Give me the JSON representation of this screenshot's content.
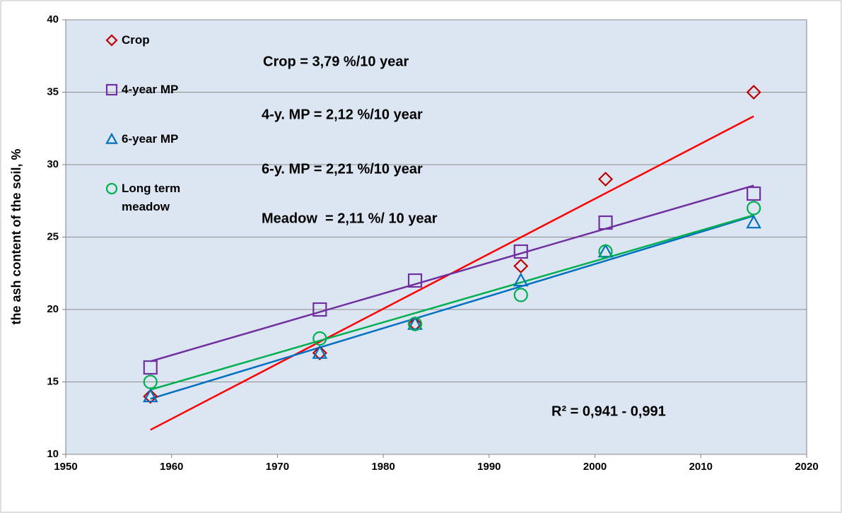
{
  "chart_data": {
    "type": "scatter",
    "y_label": "the ash content of the soil, %",
    "x": [
      1958,
      1974,
      1983,
      1993,
      2001,
      2015
    ],
    "series": [
      {
        "name": "Crop",
        "color": "#c00000",
        "trend_color": "#ff0000",
        "marker": "diamond",
        "values": [
          14,
          17,
          19,
          23,
          29,
          35
        ]
      },
      {
        "name": "4-year MP",
        "color": "#7030a0",
        "trend_color": "#7030a0",
        "marker": "square",
        "values": [
          16,
          20,
          22,
          24,
          26,
          28
        ]
      },
      {
        "name": "6-year MP",
        "color": "#0070c0",
        "trend_color": "#0070c0",
        "marker": "triangle",
        "values": [
          14,
          17,
          19,
          22,
          24,
          26
        ]
      },
      {
        "name": "Long term meadow",
        "color": "#00b050",
        "trend_color": "#00b050",
        "marker": "circle",
        "values": [
          15,
          18,
          19,
          21,
          24,
          27
        ]
      }
    ],
    "trendline": "linear",
    "annotations": [
      "Crop = 3,79 %/10 year",
      "4-y. MP = 2,12 %/10 year",
      "6-y. MP = 2,21 %/10 year",
      "Meadow  = 2,11 %/ 10 year",
      "R² = 0,941 - 0,991"
    ],
    "xlim": [
      1950,
      2020
    ],
    "xticks": [
      1950,
      1960,
      1970,
      1980,
      1990,
      2000,
      2010,
      2020
    ],
    "ylim": [
      10,
      40
    ],
    "yticks": [
      10,
      15,
      20,
      25,
      30,
      35,
      40
    ],
    "grid": true,
    "legend": "top-left"
  }
}
